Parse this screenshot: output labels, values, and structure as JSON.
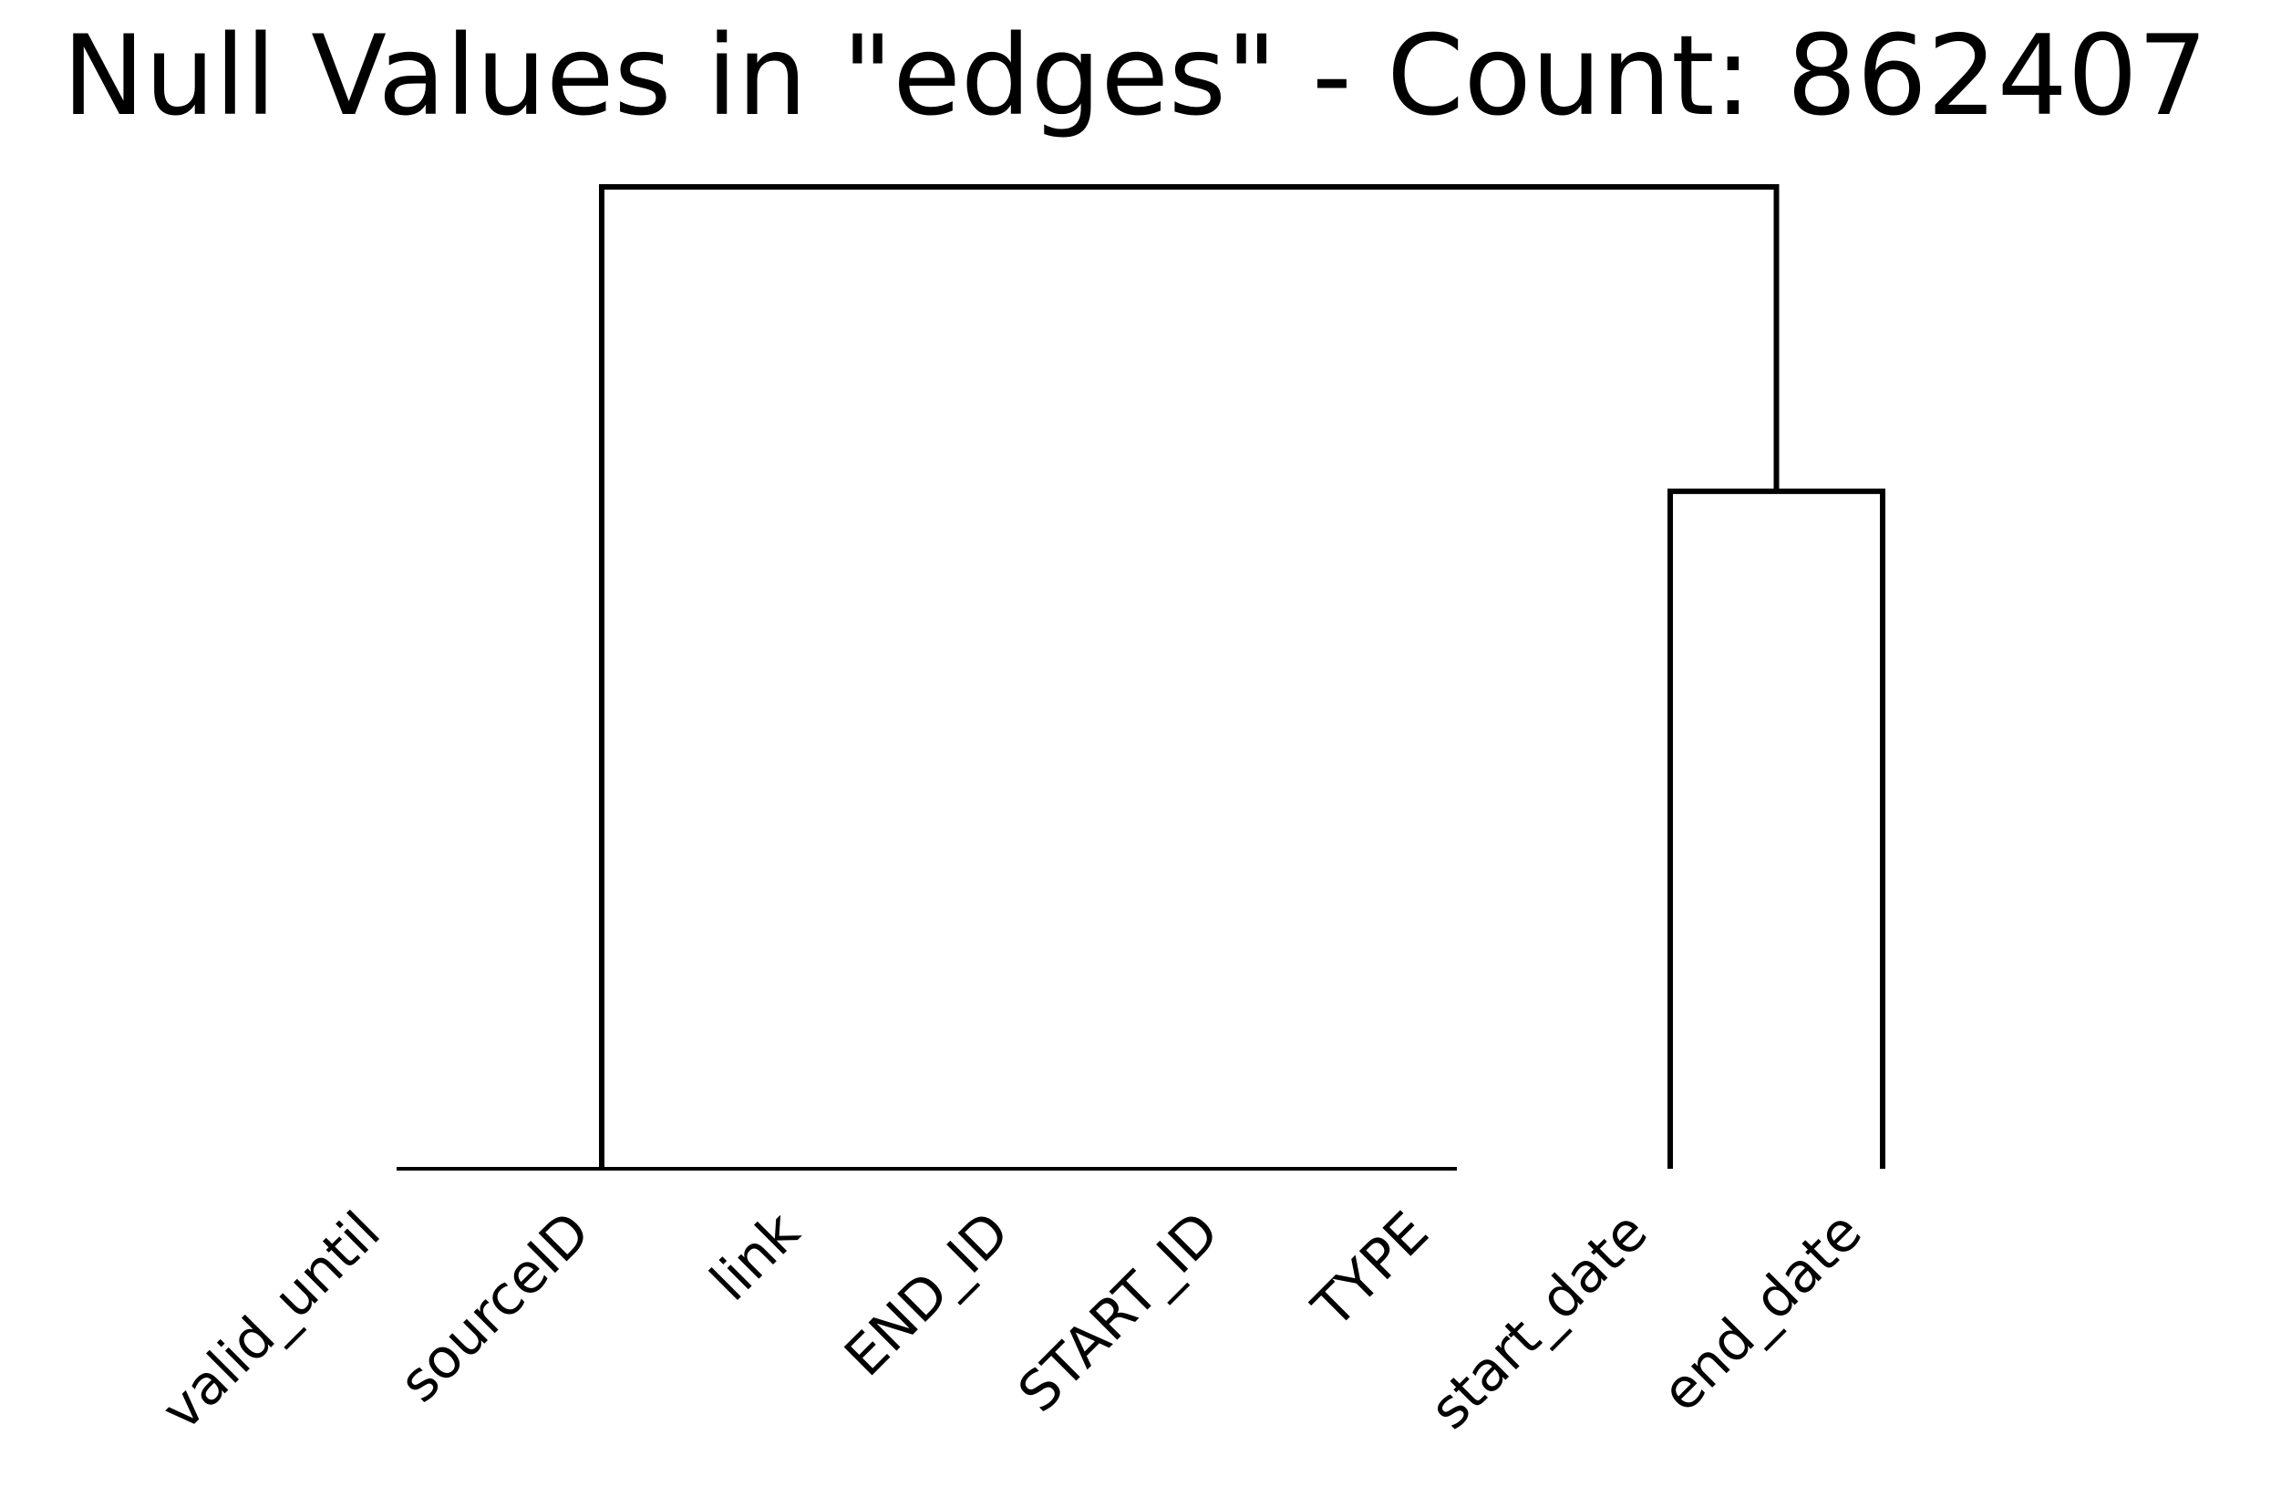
{
  "chart_data": {
    "type": "dendrogram",
    "title": "Null Values in \"edges\" - Count: 862407",
    "leaves": [
      "valid_until",
      "sourceID",
      "link",
      "END_ID",
      "START_ID",
      "TYPE",
      "start_date",
      "end_date"
    ],
    "merges": [
      {
        "left": "valid_until",
        "right": "sourceID",
        "height": 0
      },
      {
        "left": "sourceID",
        "right": "link",
        "height": 0
      },
      {
        "left": "link",
        "right": "END_ID",
        "height": 0
      },
      {
        "left": "END_ID",
        "right": "START_ID",
        "height": 0
      },
      {
        "left": "START_ID",
        "right": "TYPE",
        "height": 0
      },
      {
        "left": "start_date",
        "right": "end_date",
        "height": 0.69
      },
      {
        "left": "valid_until … TYPE",
        "right": "start_date + end_date",
        "height": 1.0
      }
    ],
    "ylim": [
      0,
      1.05
    ],
    "axes_visible": false,
    "grid": false,
    "color": "#000000"
  }
}
